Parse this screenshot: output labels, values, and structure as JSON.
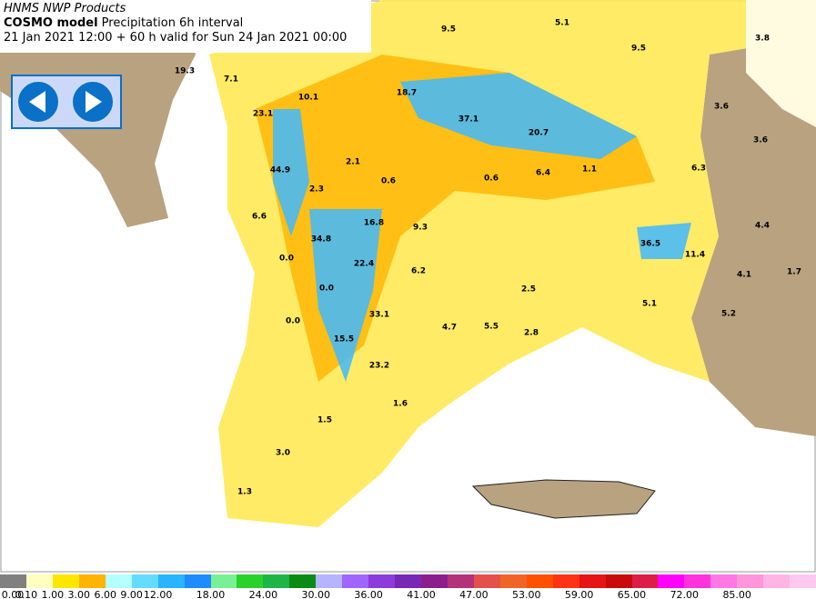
{
  "header": {
    "product": "HNMS NWP Products",
    "model": "COSMO model",
    "field": "Precipitation 6h interval",
    "valid": "21 Jan 2021 12:00 + 60 h valid for Sun 24 Jan 2021 00:00"
  },
  "map_labels": [
    "9.5",
    "5.1",
    "3.8",
    "9.5",
    "19.3",
    "7.1",
    "10.1",
    "18.7",
    "3.6",
    "23.1",
    "37.1",
    "20.7",
    "3.6",
    "44.9",
    "2.1",
    "0.6",
    "0.6",
    "6.4",
    "1.1",
    "6.3",
    "2.3",
    "6.6",
    "16.8",
    "9.3",
    "4.4",
    "34.8",
    "36.5",
    "11.4",
    "0.0",
    "22.4",
    "6.2",
    "4.1",
    "1.7",
    "0.0",
    "2.5",
    "5.1",
    "33.1",
    "5.2",
    "0.0",
    "4.7",
    "5.5",
    "2.8",
    "15.5",
    "23.2",
    "1.6",
    "1.5",
    "3.0",
    "1.3"
  ],
  "colorbar": {
    "colors": [
      "#808080",
      "#ffffc0",
      "#ffe600",
      "#ffb400",
      "#b4ffff",
      "#64dcff",
      "#28b4ff",
      "#1e8cff",
      "#78f096",
      "#28d228",
      "#1eb446",
      "#0a8c14",
      "#b4b4ff",
      "#a064ff",
      "#8c3cdc",
      "#7828b4",
      "#8c1e8c",
      "#b43278",
      "#e6504b",
      "#f06428",
      "#ff5000",
      "#ff3214",
      "#e61414",
      "#c80a0a",
      "#dc1e46",
      "#ff00ff",
      "#ff32dc",
      "#ff78e6",
      "#ff96dc",
      "#ffb4e6",
      "#ffc8f0"
    ],
    "labels": [
      "0.00",
      "0.10",
      "1.00",
      "3.00",
      "6.00",
      "9.00",
      "12.00",
      "18.00",
      "24.00",
      "30.00",
      "36.00",
      "41.00",
      "47.00",
      "53.00",
      "59.00",
      "65.00",
      "72.00",
      "85.00"
    ]
  },
  "nav": {
    "prev": "Previous",
    "next": "Next"
  }
}
